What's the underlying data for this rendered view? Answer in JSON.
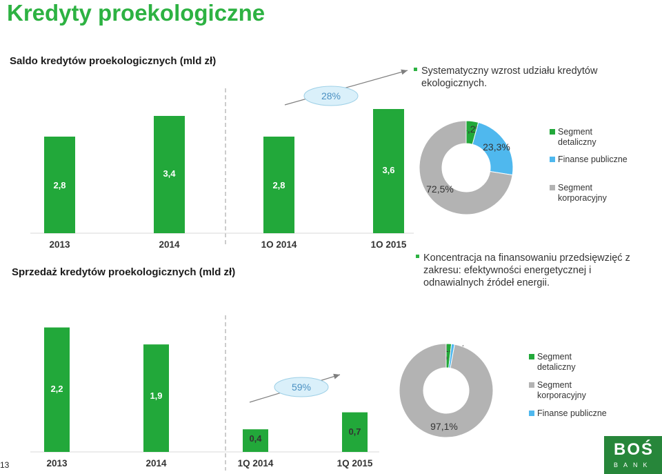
{
  "page": {
    "title": "Kredyty proekologiczne",
    "page_number": "13",
    "logo": {
      "word": "BOŚ",
      "sub": "BANK"
    }
  },
  "sections": {
    "saldo_title": "Saldo kredytów proekologicznych (mld zł)",
    "sprzedaz_title": "Sprzedaż kredytów proekologicznych (mld zł)",
    "bullet_top": "Systematyczny wzrost udziału kredytów ekologicznych.",
    "bullet_bottom": "Koncentracja na finansowaniu przedsięwzięć z zakresu: efektywności energetycznej i odnawialnych źródeł energii."
  },
  "chart_data": [
    {
      "type": "bar",
      "title": "Saldo kredytów proekologicznych (mld zł)",
      "categories": [
        "2013",
        "2014",
        "1O 2014",
        "1O 2015"
      ],
      "values": [
        2.8,
        3.4,
        2.8,
        3.6
      ],
      "value_labels": [
        "2,8",
        "3,4",
        "2,8",
        "3,6"
      ],
      "annotation": "28%",
      "color": "#22a83a"
    },
    {
      "type": "pie",
      "series": [
        {
          "name": "Segment detaliczny",
          "value": 4.2,
          "label": "4,2%",
          "color": "#22a83a"
        },
        {
          "name": "Finanse publiczne",
          "value": 23.3,
          "label": "23,3%",
          "color": "#4fb8ee"
        },
        {
          "name": "Segment korporacyjny",
          "value": 72.5,
          "label": "72,5%",
          "color": "#b3b3b3"
        }
      ],
      "legend": [
        "Segment detaliczny",
        "Finanse publiczne",
        "Segment korporacyjny"
      ]
    },
    {
      "type": "bar",
      "title": "Sprzedaż kredytów proekologicznych (mld zł)",
      "categories": [
        "2013",
        "2014",
        "1Q 2014",
        "1Q 2015"
      ],
      "values": [
        2.2,
        1.9,
        0.4,
        0.7
      ],
      "value_labels": [
        "2,2",
        "1,9",
        "0,4",
        "0,7"
      ],
      "annotation": "59%",
      "color": "#22a83a"
    },
    {
      "type": "pie",
      "series": [
        {
          "name": "Segment detaliczny",
          "value": 1.8,
          "label": "1,8%",
          "color": "#22a83a"
        },
        {
          "name": "Finanse publiczne",
          "value": 1.1,
          "label": "1,1%",
          "color": "#4fb8ee"
        },
        {
          "name": "Segment korporacyjny",
          "value": 97.1,
          "label": "97,1%",
          "color": "#b3b3b3"
        }
      ],
      "legend": [
        "Segment detaliczny",
        "Segment korporacyjny",
        "Finanse publiczne"
      ]
    }
  ]
}
